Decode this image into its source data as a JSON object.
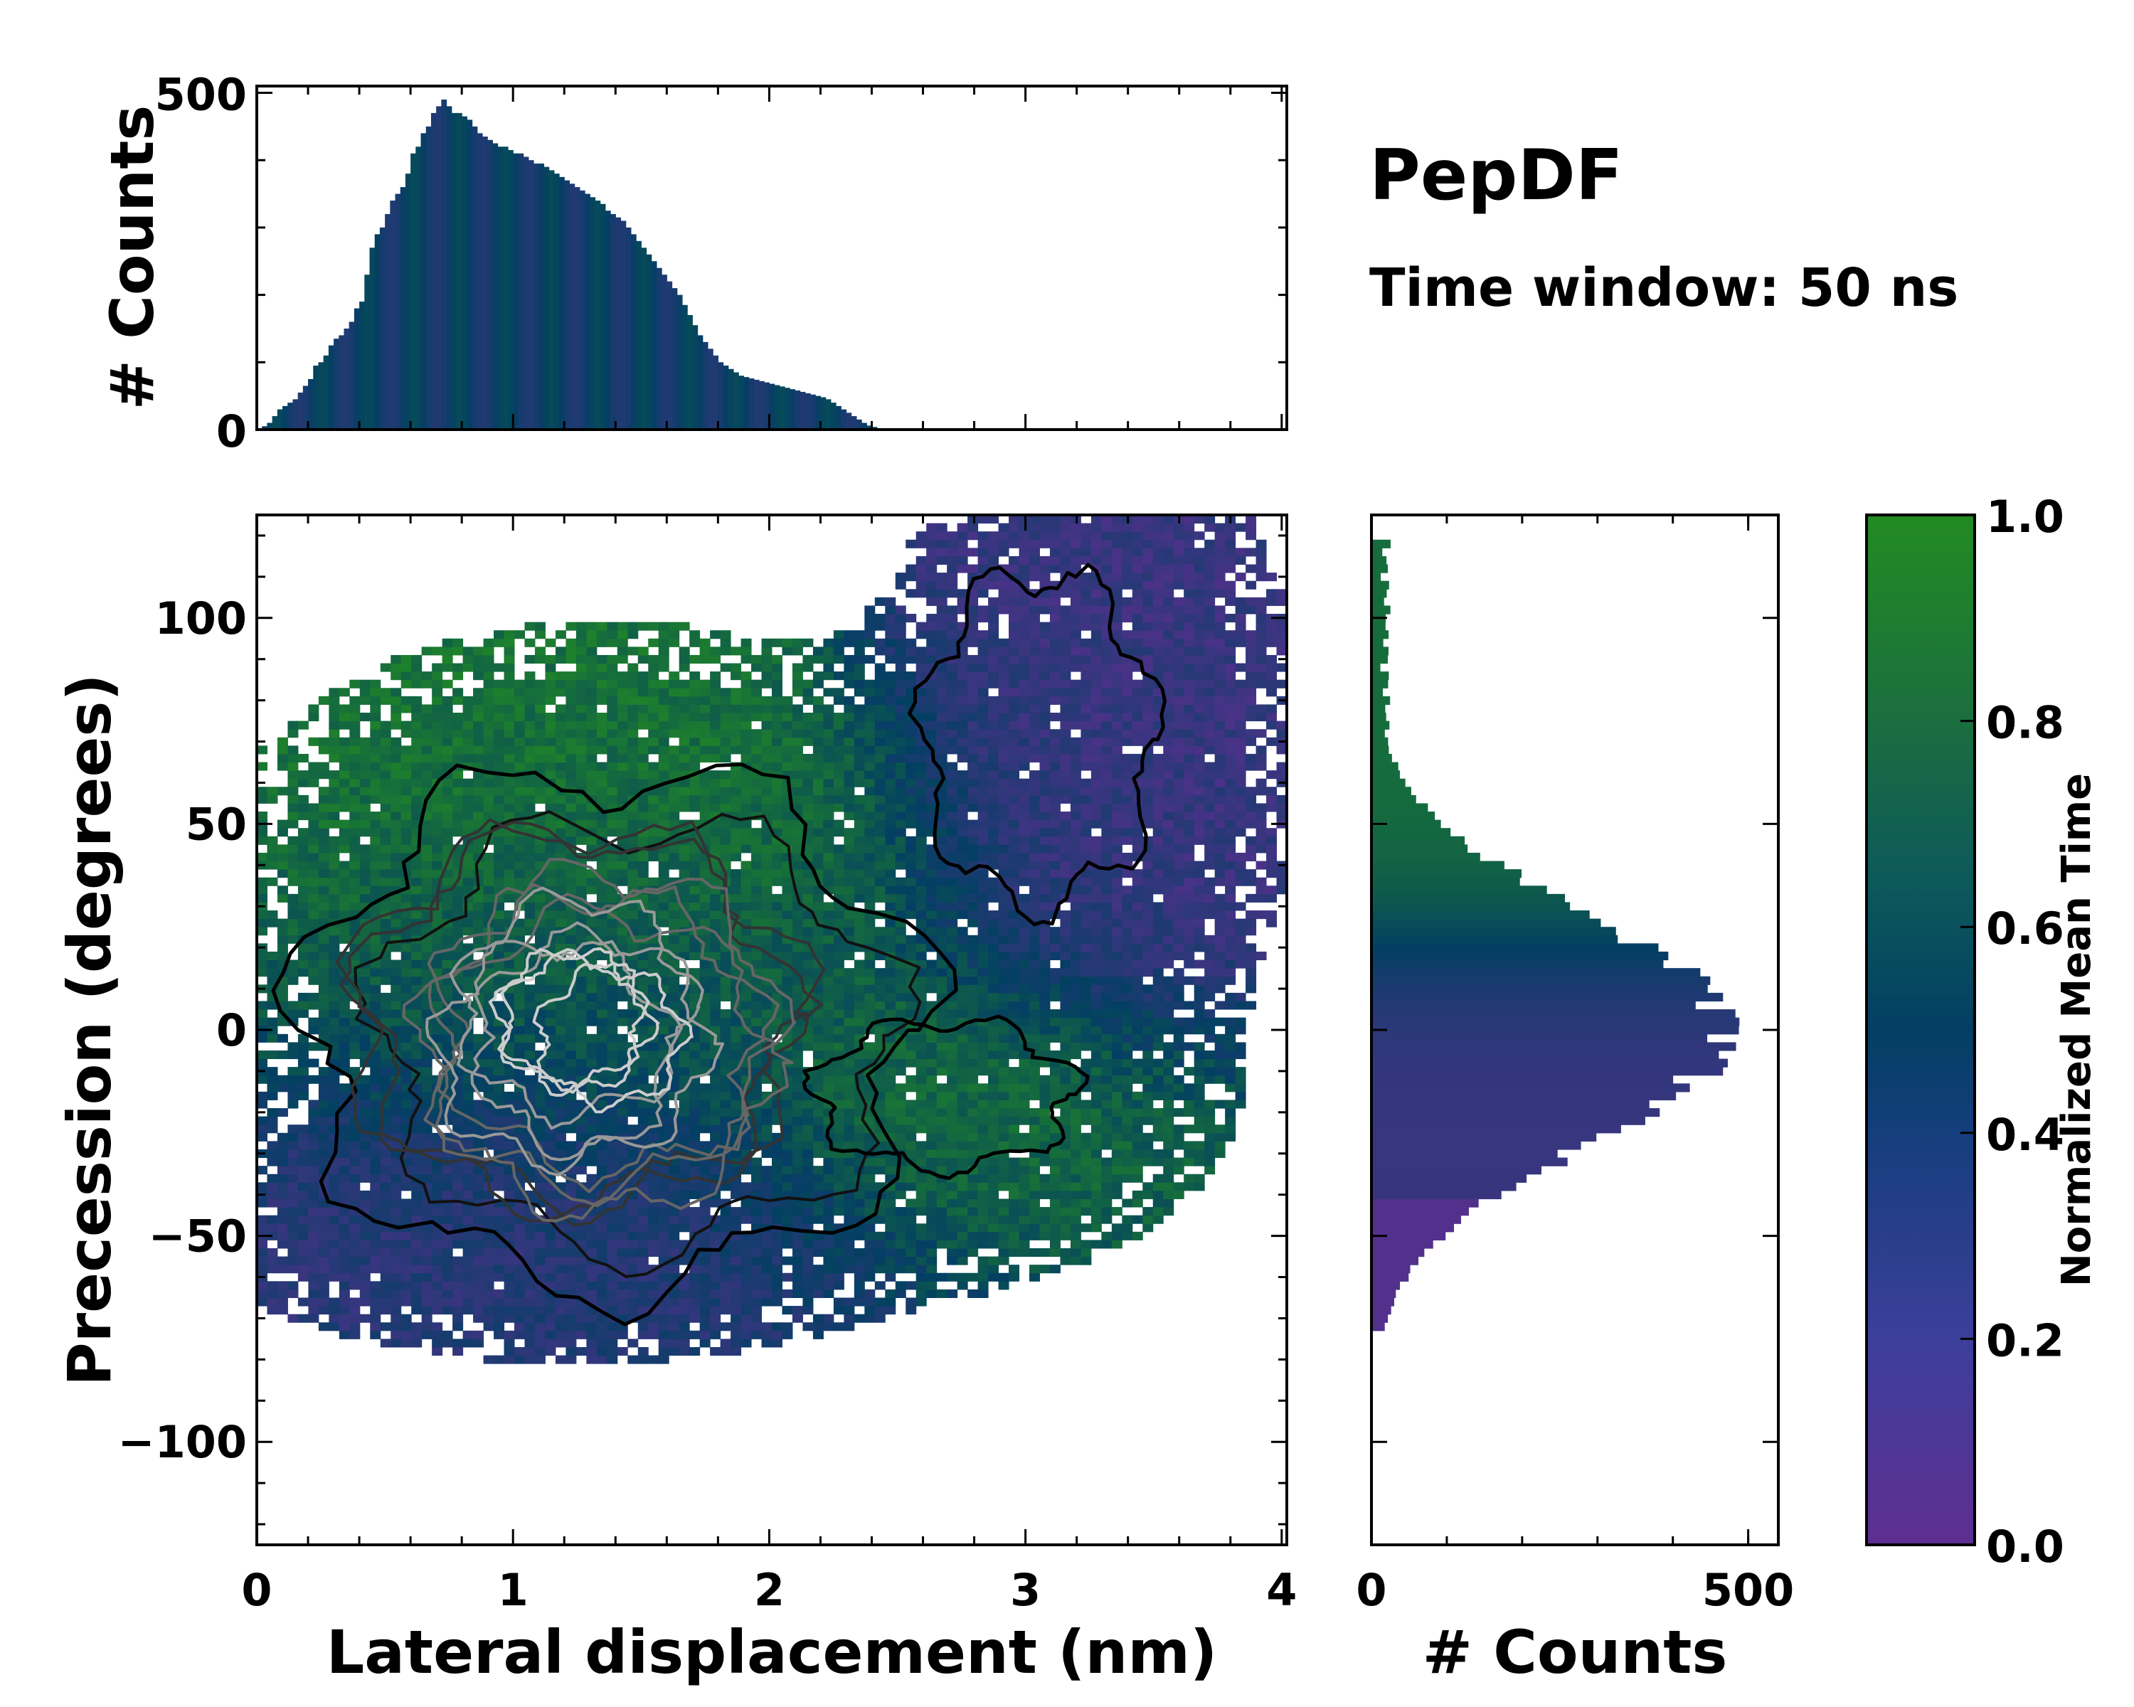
{
  "figure": {
    "title": "PepDF",
    "subtitle": "Time window: 50 ns"
  },
  "colors": {
    "low": "#5b2f91",
    "mid": "#033f63",
    "high": "#228b22"
  },
  "chart_data": [
    {
      "type": "bar",
      "name": "top-histogram",
      "ylabel": "# Counts",
      "xlim": [
        0,
        4.02
      ],
      "ylim": [
        0,
        510
      ],
      "yticks": [
        0,
        500
      ],
      "x_start": 0.02,
      "bin_width": 0.02,
      "values": [
        5,
        10,
        20,
        30,
        35,
        40,
        45,
        55,
        65,
        75,
        95,
        100,
        110,
        125,
        135,
        140,
        150,
        160,
        180,
        190,
        230,
        270,
        290,
        300,
        320,
        340,
        350,
        360,
        380,
        410,
        420,
        440,
        450,
        470,
        480,
        490,
        480,
        470,
        470,
        465,
        460,
        450,
        440,
        435,
        430,
        425,
        420,
        420,
        415,
        410,
        410,
        405,
        400,
        395,
        395,
        390,
        385,
        380,
        375,
        370,
        365,
        360,
        355,
        350,
        345,
        340,
        335,
        325,
        320,
        315,
        310,
        300,
        290,
        280,
        270,
        260,
        250,
        240,
        230,
        220,
        210,
        200,
        185,
        170,
        155,
        140,
        130,
        120,
        110,
        100,
        95,
        90,
        85,
        80,
        78,
        76,
        74,
        72,
        70,
        68,
        66,
        64,
        62,
        60,
        58,
        56,
        54,
        52,
        50,
        48,
        45,
        40,
        35,
        30,
        25,
        20,
        15,
        10,
        6,
        4,
        2,
        1,
        0,
        0,
        0,
        0,
        0,
        0,
        0,
        0,
        0,
        0,
        0,
        0,
        0,
        0,
        0,
        0,
        0,
        0,
        0,
        0,
        0,
        0,
        0,
        0,
        0,
        0,
        0,
        0,
        0,
        0,
        0,
        0,
        0,
        0,
        0,
        0,
        0,
        0,
        0,
        0,
        0,
        0,
        0,
        0,
        0,
        0,
        0,
        0,
        0,
        0,
        0,
        0,
        0,
        0,
        0,
        0,
        0,
        0,
        0,
        0,
        0,
        0,
        0,
        0,
        0,
        0,
        0,
        0,
        0,
        0,
        0,
        0,
        0,
        0,
        0,
        0,
        0,
        0,
        0,
        0,
        0,
        0,
        0
      ]
    },
    {
      "type": "heatmap",
      "name": "main-density",
      "xlabel": "Lateral displacement (nm)",
      "ylabel": "Precession (degrees)",
      "xlim": [
        0,
        4.02
      ],
      "ylim": [
        -125,
        125
      ],
      "xticks": [
        0,
        1,
        2,
        3,
        4
      ],
      "yticks": [
        -100,
        -50,
        0,
        50,
        100
      ],
      "colorbar": {
        "label": "Normalized Mean Time",
        "range": [
          0.0,
          1.0
        ],
        "ticks": [
          0.0,
          0.2,
          0.4,
          0.6,
          0.8,
          1.0
        ]
      },
      "regions": [
        {
          "name": "upper-left-green",
          "center": [
            1.35,
            45
          ],
          "spread": [
            0.75,
            28
          ],
          "mean_time": 0.88
        },
        {
          "name": "core-dense",
          "center": [
            1.35,
            5
          ],
          "spread": [
            0.7,
            35
          ],
          "mean_time": 0.55
        },
        {
          "name": "lower-purple",
          "center": [
            1.2,
            -45
          ],
          "spread": [
            0.8,
            18
          ],
          "mean_time": 0.25
        },
        {
          "name": "right-tail-green",
          "center": [
            2.7,
            -20
          ],
          "spread": [
            0.55,
            20
          ],
          "mean_time": 0.85
        },
        {
          "name": "upper-right-purple",
          "center": [
            3.25,
            70
          ],
          "spread": [
            0.45,
            45
          ],
          "mean_time": 0.2
        }
      ]
    },
    {
      "type": "bar",
      "orientation": "horizontal",
      "name": "right-histogram",
      "xlabel": "# Counts",
      "xlim": [
        0,
        540
      ],
      "ylim": [
        -125,
        125
      ],
      "xticks": [
        0,
        500
      ],
      "bin_center_model": {
        "mean": 0,
        "sd": 28,
        "peak": 470
      },
      "tail_model": {
        "from": 40,
        "to": 120,
        "level": 20
      }
    }
  ]
}
